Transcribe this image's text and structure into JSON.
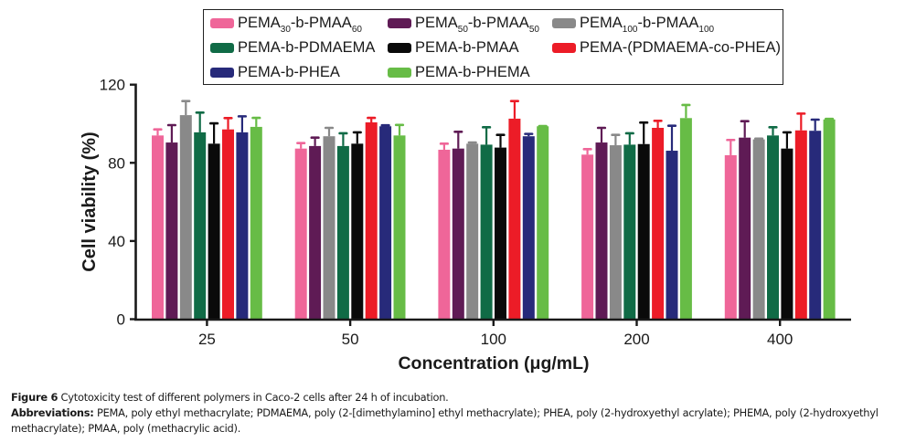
{
  "chart_data": {
    "type": "bar",
    "title": "",
    "xlabel": "Concentration (μg/mL)",
    "ylabel": "Cell viability (%)",
    "ylim": [
      0,
      120
    ],
    "yticks": [
      0,
      40,
      80,
      120
    ],
    "grid": false,
    "legend_position": "top",
    "categories": [
      "25",
      "50",
      "100",
      "200",
      "400"
    ],
    "series": [
      {
        "name": "PEMA30-b-PMAA60",
        "segments": [
          {
            "t": "PEMA"
          },
          {
            "t": "30",
            "sub": true
          },
          {
            "t": "-b-PMAA"
          },
          {
            "t": "60",
            "sub": true
          }
        ],
        "color": "#ef6699",
        "values": [
          94.0,
          87.3,
          86.7,
          84.2,
          83.9
        ],
        "errors": [
          3.1,
          2.8,
          3.1,
          2.8,
          7.8
        ]
      },
      {
        "name": "PEMA50-b-PMAA50",
        "segments": [
          {
            "t": "PEMA"
          },
          {
            "t": "50",
            "sub": true
          },
          {
            "t": "-b-PMAA"
          },
          {
            "t": "50",
            "sub": true
          }
        ],
        "color": "#5f1b55",
        "values": [
          90.4,
          88.6,
          87.3,
          90.4,
          92.9
        ],
        "errors": [
          8.9,
          4.3,
          8.6,
          7.5,
          8.4
        ]
      },
      {
        "name": "PEMA100-b-PMAA100",
        "segments": [
          {
            "t": "PEMA"
          },
          {
            "t": "100",
            "sub": true
          },
          {
            "t": "-b-PMAA"
          },
          {
            "t": "100",
            "sub": true
          }
        ],
        "color": "#898989",
        "values": [
          104.4,
          93.6,
          89.8,
          89.0,
          92.0
        ],
        "errors": [
          7.2,
          4.3,
          0.6,
          5.3,
          0.4
        ]
      },
      {
        "name": "PEMA-b-PDMAEMA",
        "segments": [
          {
            "t": "PEMA-b-PDMAEMA"
          }
        ],
        "color": "#106b46",
        "values": [
          95.6,
          88.6,
          89.3,
          89.3,
          94.0
        ],
        "errors": [
          10.1,
          6.5,
          8.9,
          5.8,
          4.2
        ]
      },
      {
        "name": "PEMA-b-PMAA",
        "segments": [
          {
            "t": "PEMA-b-PMAA"
          }
        ],
        "color": "#0a0a0a",
        "values": [
          89.8,
          89.8,
          87.8,
          89.6,
          87.3
        ],
        "errors": [
          10.4,
          5.8,
          6.5,
          11.0,
          8.3
        ]
      },
      {
        "name": "PEMA-(PDMAEMA-co-PHEA)",
        "segments": [
          {
            "t": "PEMA-(PDMAEMA-co-PHEA)"
          }
        ],
        "color": "#ec1c27",
        "values": [
          97.1,
          100.7,
          102.6,
          97.9,
          96.6
        ],
        "errors": [
          5.8,
          2.3,
          9.0,
          3.6,
          8.6
        ]
      },
      {
        "name": "PEMA-b-PHEA",
        "segments": [
          {
            "t": "PEMA-b-PHEA"
          }
        ],
        "color": "#272a7a",
        "values": [
          95.6,
          98.7,
          93.6,
          86.2,
          96.4
        ],
        "errors": [
          8.2,
          0.5,
          1.2,
          12.8,
          5.7
        ]
      },
      {
        "name": "PEMA-b-PHEMA",
        "segments": [
          {
            "t": "PEMA-b-PHEMA"
          }
        ],
        "color": "#67bc46",
        "values": [
          98.4,
          94.0,
          98.7,
          102.9,
          102.2
        ],
        "errors": [
          4.6,
          5.4,
          0.1,
          6.7,
          0.3
        ]
      }
    ]
  },
  "caption": {
    "figure_label": "Figure 6",
    "figure_text": " Cytotoxicity test of different polymers in Caco-2 cells after 24 h of incubation.",
    "abbrev_label": "Abbreviations:",
    "abbrev_text": " PEMA, poly ethyl methacrylate; PDMAEMA, poly (2-[dimethylamino] ethyl methacrylate); PHEA, poly (2-hydroxyethyl acrylate); PHEMA, poly (2-hydroxyethyl methacrylate); PMAA, poly (methacrylic acid)."
  }
}
